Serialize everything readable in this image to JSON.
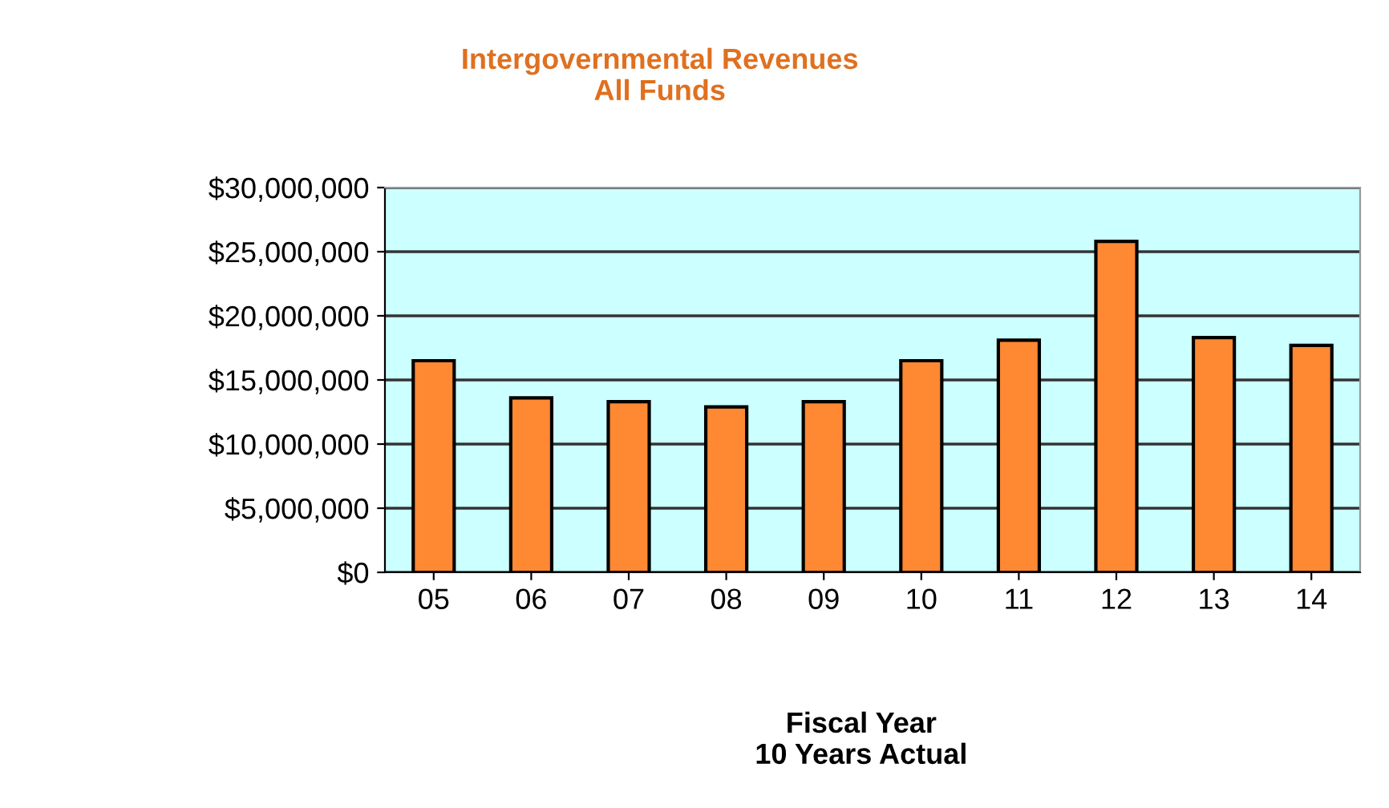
{
  "chart_data": {
    "type": "bar",
    "title": "Intergovernmental Revenues\nAll Funds",
    "xlabel": "Fiscal Year\n10 Years Actual",
    "categories": [
      "05",
      "06",
      "07",
      "08",
      "09",
      "10",
      "11",
      "12",
      "13",
      "14"
    ],
    "values": [
      16500000,
      13600000,
      13300000,
      12900000,
      13300000,
      16500000,
      18100000,
      25800000,
      18300000,
      17700000
    ],
    "color": "#ff8833",
    "ylim": [
      0,
      30000000
    ],
    "yticks": [
      {
        "value": 0,
        "label": "$0"
      },
      {
        "value": 5000000,
        "label": "$5,000,000"
      },
      {
        "value": 10000000,
        "label": "$10,000,000"
      },
      {
        "value": 15000000,
        "label": "$15,000,000"
      },
      {
        "value": 20000000,
        "label": "$20,000,000"
      },
      {
        "value": 25000000,
        "label": "$25,000,000"
      },
      {
        "value": 30000000,
        "label": "$30,000,000"
      }
    ],
    "grid": "y"
  }
}
